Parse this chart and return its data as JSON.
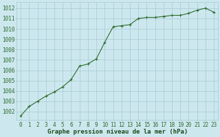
{
  "x": [
    0,
    1,
    2,
    3,
    4,
    5,
    6,
    7,
    8,
    9,
    10,
    11,
    12,
    13,
    14,
    15,
    16,
    17,
    18,
    19,
    20,
    21,
    22,
    23
  ],
  "y": [
    1001.6,
    1002.5,
    1003.0,
    1003.5,
    1003.9,
    1004.4,
    1005.1,
    1006.4,
    1006.6,
    1007.1,
    1008.7,
    1010.2,
    1010.3,
    1010.4,
    1011.0,
    1011.1,
    1011.1,
    1011.2,
    1011.3,
    1011.3,
    1011.5,
    1011.8,
    1012.0,
    1011.6
  ],
  "line_color": "#2d6a2d",
  "marker": "+",
  "bg_color": "#cce8ee",
  "grid_color": "#a8c8d0",
  "xlabel": "Graphe pression niveau de la mer (hPa)",
  "xlabel_color": "#1a4a1a",
  "ylabel_ticks": [
    1002,
    1003,
    1004,
    1005,
    1006,
    1007,
    1008,
    1009,
    1010,
    1011,
    1012
  ],
  "xlim": [
    -0.5,
    23.5
  ],
  "ylim": [
    1001.2,
    1012.6
  ],
  "tick_color": "#2d6a2d",
  "tick_fontsize": 5.5,
  "xlabel_fontsize": 6.5,
  "line_width": 0.8,
  "marker_size": 3.5,
  "marker_ew": 0.8
}
